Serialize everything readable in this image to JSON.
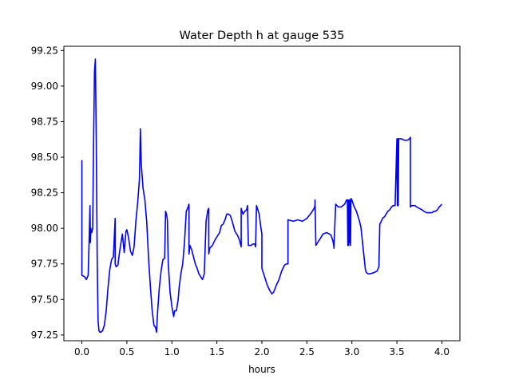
{
  "chart_data": {
    "type": "line",
    "title": "Water Depth h at gauge 535",
    "xlabel": "hours",
    "ylabel": "",
    "xlim": [
      -0.2,
      4.2
    ],
    "ylim": [
      97.21,
      99.28
    ],
    "xticks": [
      0.0,
      0.5,
      1.0,
      1.5,
      2.0,
      2.5,
      3.0,
      3.5,
      4.0
    ],
    "xtick_labels": [
      "0.0",
      "0.5",
      "1.0",
      "1.5",
      "2.0",
      "2.5",
      "3.0",
      "3.5",
      "4.0"
    ],
    "yticks": [
      97.25,
      97.5,
      97.75,
      98.0,
      98.25,
      98.5,
      98.75,
      99.0,
      99.25
    ],
    "ytick_labels": [
      "97.25",
      "97.50",
      "97.75",
      "98.00",
      "98.25",
      "98.50",
      "98.75",
      "99.00",
      "99.25"
    ],
    "grid": false,
    "legend": "none",
    "series": [
      {
        "color": "#0000ff",
        "x": [
          0.0,
          0.0,
          0.03,
          0.05,
          0.07,
          0.08,
          0.09,
          0.095,
          0.1,
          0.105,
          0.11,
          0.12,
          0.13,
          0.14,
          0.15,
          0.16,
          0.17,
          0.18,
          0.19,
          0.2,
          0.21,
          0.23,
          0.25,
          0.27,
          0.29,
          0.31,
          0.33,
          0.35,
          0.37,
          0.37,
          0.38,
          0.4,
          0.42,
          0.45,
          0.47,
          0.49,
          0.5,
          0.52,
          0.54,
          0.56,
          0.58,
          0.6,
          0.62,
          0.64,
          0.65,
          0.66,
          0.68,
          0.7,
          0.72,
          0.74,
          0.76,
          0.78,
          0.8,
          0.82,
          0.83,
          0.84,
          0.86,
          0.88,
          0.9,
          0.92,
          0.93,
          0.94,
          0.95,
          0.96,
          0.98,
          1.0,
          1.02,
          1.03,
          1.05,
          1.07,
          1.08,
          1.1,
          1.12,
          1.14,
          1.16,
          1.18,
          1.19,
          1.19,
          1.2,
          1.22,
          1.24,
          1.26,
          1.28,
          1.3,
          1.32,
          1.34,
          1.36,
          1.38,
          1.4,
          1.41,
          1.41,
          1.42,
          1.45,
          1.48,
          1.5,
          1.53,
          1.55,
          1.57,
          1.59,
          1.61,
          1.63,
          1.65,
          1.67,
          1.7,
          1.73,
          1.75,
          1.77,
          1.77,
          1.79,
          1.81,
          1.83,
          1.84,
          1.85,
          1.88,
          1.9,
          1.92,
          1.93,
          1.94,
          1.97,
          1.99,
          2.0,
          2.0,
          2.03,
          2.06,
          2.09,
          2.11,
          2.13,
          2.16,
          2.19,
          2.22,
          2.25,
          2.27,
          2.29,
          2.29,
          2.35,
          2.4,
          2.45,
          2.5,
          2.55,
          2.58,
          2.59,
          2.59,
          2.6,
          2.62,
          2.65,
          2.68,
          2.72,
          2.75,
          2.77,
          2.79,
          2.8,
          2.8,
          2.82,
          2.85,
          2.88,
          2.92,
          2.94,
          2.95,
          2.955,
          2.96,
          2.965,
          2.97,
          2.975,
          2.98,
          2.985,
          2.99,
          3.0,
          3.02,
          3.05,
          3.08,
          3.1,
          3.15,
          3.16,
          3.18,
          3.2,
          3.25,
          3.28,
          3.3,
          3.31,
          3.32,
          3.34,
          3.36,
          3.38,
          3.4,
          3.42,
          3.44,
          3.46,
          3.48,
          3.5,
          3.505,
          3.51,
          3.515,
          3.52,
          3.55,
          3.58,
          3.6,
          3.62,
          3.64,
          3.65,
          3.65,
          3.66,
          3.68,
          3.7,
          3.72,
          3.75,
          3.78,
          3.8,
          3.83,
          3.86,
          3.89,
          3.91,
          3.93,
          3.95,
          3.97,
          4.0
        ],
        "y": [
          98.48,
          97.67,
          97.66,
          97.64,
          97.67,
          97.9,
          98.16,
          97.9,
          98.0,
          97.97,
          97.97,
          98.0,
          98.6,
          99.1,
          99.19,
          98.6,
          97.8,
          97.35,
          97.28,
          97.27,
          97.27,
          97.28,
          97.32,
          97.42,
          97.58,
          97.71,
          97.78,
          97.8,
          98.07,
          97.75,
          97.73,
          97.74,
          97.84,
          97.96,
          97.83,
          97.98,
          97.99,
          97.93,
          97.84,
          97.81,
          97.87,
          98.05,
          98.18,
          98.35,
          98.7,
          98.45,
          98.28,
          98.2,
          98.05,
          97.8,
          97.6,
          97.43,
          97.32,
          97.3,
          97.27,
          97.4,
          97.58,
          97.7,
          97.78,
          97.79,
          98.12,
          98.1,
          98.06,
          97.75,
          97.55,
          97.45,
          97.38,
          97.42,
          97.42,
          97.5,
          97.58,
          97.68,
          97.75,
          97.9,
          98.12,
          98.15,
          98.17,
          97.82,
          97.88,
          97.85,
          97.8,
          97.75,
          97.72,
          97.68,
          97.66,
          97.64,
          97.68,
          98.05,
          98.13,
          98.14,
          97.82,
          97.86,
          97.88,
          97.92,
          97.94,
          97.97,
          98.02,
          98.03,
          98.06,
          98.1,
          98.1,
          98.09,
          98.05,
          97.98,
          97.95,
          97.92,
          97.87,
          98.14,
          98.1,
          98.12,
          98.13,
          98.16,
          97.88,
          97.88,
          97.89,
          97.89,
          97.87,
          98.16,
          98.1,
          98.0,
          97.96,
          97.72,
          97.66,
          97.6,
          97.56,
          97.54,
          97.55,
          97.6,
          97.64,
          97.7,
          97.74,
          97.75,
          97.75,
          98.06,
          98.05,
          98.06,
          98.05,
          98.07,
          98.11,
          98.14,
          98.16,
          98.2,
          97.88,
          97.9,
          97.93,
          97.96,
          97.97,
          97.96,
          97.95,
          97.91,
          97.87,
          97.86,
          98.17,
          98.15,
          98.15,
          98.17,
          98.2,
          98.2,
          97.88,
          98.2,
          97.88,
          98.2,
          97.9,
          98.2,
          97.88,
          98.21,
          98.2,
          98.16,
          98.12,
          98.06,
          98.01,
          97.71,
          97.69,
          97.68,
          97.68,
          97.69,
          97.7,
          97.73,
          98.03,
          98.04,
          98.07,
          98.08,
          98.1,
          98.12,
          98.13,
          98.15,
          98.16,
          98.16,
          98.63,
          98.16,
          98.63,
          98.16,
          98.63,
          98.63,
          98.62,
          98.62,
          98.62,
          98.63,
          98.64,
          98.15,
          98.16,
          98.16,
          98.16,
          98.15,
          98.14,
          98.13,
          98.12,
          98.11,
          98.11,
          98.11,
          98.12,
          98.12,
          98.13,
          98.15,
          98.17
        ]
      }
    ]
  }
}
